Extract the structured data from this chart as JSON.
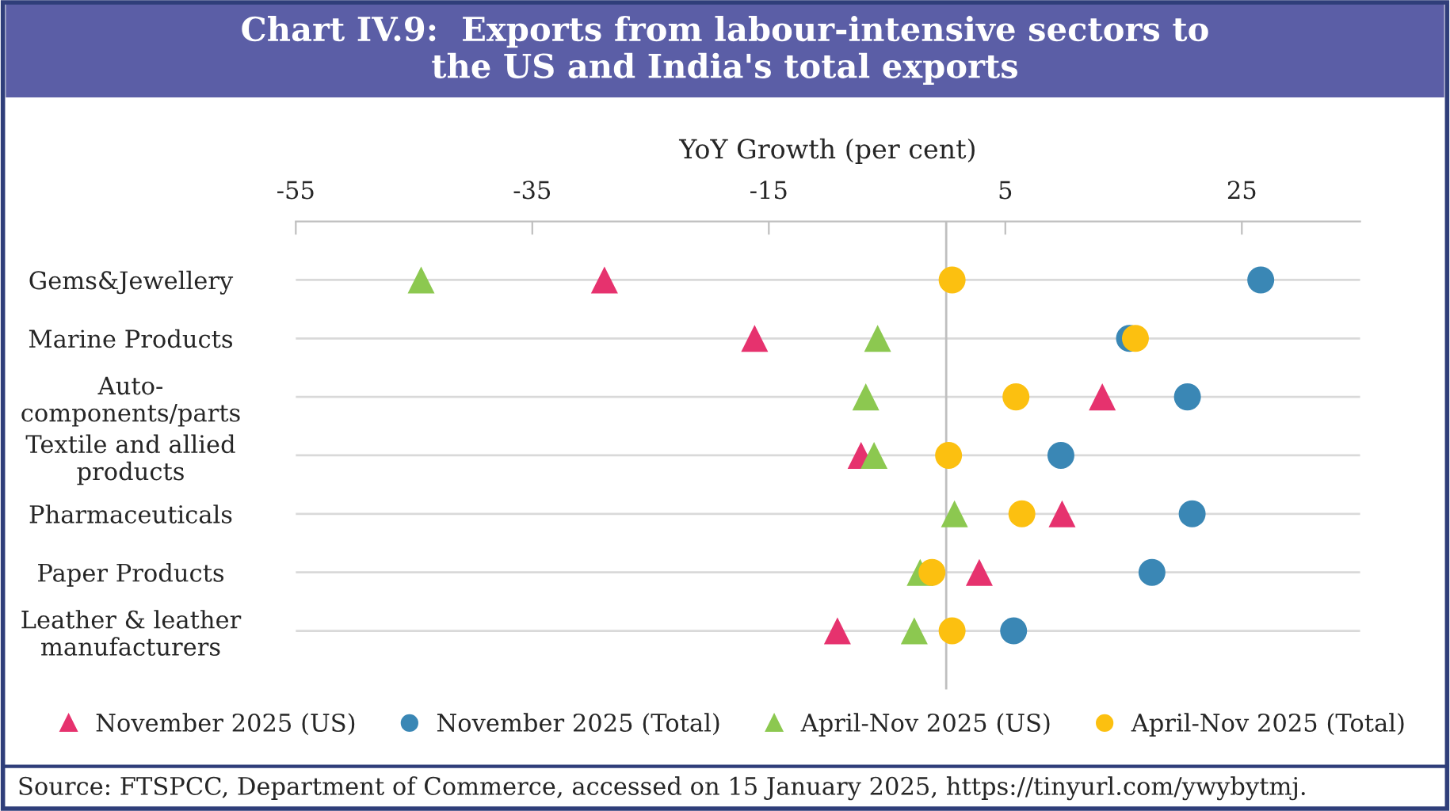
{
  "chart_data": {
    "type": "scatter",
    "title": "Chart IV.9:  Exports from labour-intensive sectors to\nthe US and India's total exports",
    "xlabel": "YoY Growth (per cent)",
    "categories": [
      "Gems&Jewellery",
      "Marine Products",
      "Auto-\ncomponents/parts",
      "Textile and allied\nproducts",
      "Pharmaceuticals",
      "Paper Products",
      "Leather & leather\nmanufacturers"
    ],
    "orientation": "horizontal",
    "series": [
      {
        "name": "November 2025 (US)",
        "color": "#e6326e",
        "marker": "triangle",
        "values": [
          -28.9,
          -16.2,
          13.2,
          -7.2,
          9.8,
          2.8,
          -9.2
        ]
      },
      {
        "name": "November 2025 (Total)",
        "color": "#3a87b5",
        "marker": "circle",
        "values": [
          26.6,
          15.5,
          20.4,
          9.7,
          20.8,
          17.4,
          5.7
        ]
      },
      {
        "name": "April-Nov 2025 (US)",
        "color": "#8cc850",
        "marker": "triangle",
        "values": [
          -44.4,
          -5.8,
          -6.8,
          -6.1,
          0.7,
          -2.2,
          -2.7
        ]
      },
      {
        "name": "April-Nov 2025 (Total)",
        "color": "#fcc010",
        "marker": "circle",
        "values": [
          0.5,
          16.0,
          5.9,
          0.2,
          6.4,
          -1.2,
          0.5
        ]
      }
    ],
    "xlim": [
      -55,
      35
    ],
    "xticks": [
      -55,
      -35,
      -15,
      5,
      25
    ],
    "ref_lines": [
      {
        "axis": "x",
        "value": 0,
        "color": "#bfbfbf"
      }
    ],
    "grid": "y",
    "legend": "bottom",
    "annotations": [
      "Source: FTSPCC, Department of Commerce, accessed on 15 January 2025, https://tinyurl.com/ywybytmj."
    ]
  }
}
